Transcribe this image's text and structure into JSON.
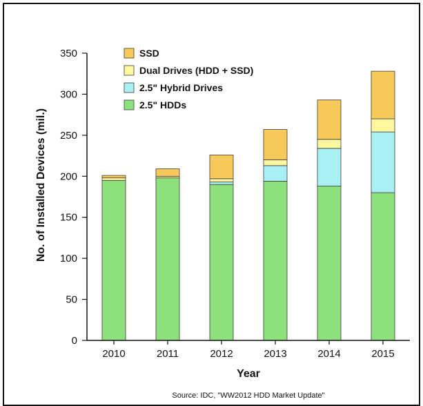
{
  "chart_data": {
    "type": "bar",
    "stacked": true,
    "categories": [
      "2010",
      "2011",
      "2012",
      "2013",
      "2014",
      "2015"
    ],
    "series": [
      {
        "name": "2.5\" HDDs",
        "color": "#8ee07c",
        "values": [
          195,
          198,
          190,
          194,
          188,
          180
        ]
      },
      {
        "name": "2.5\" Hybrid Drives",
        "color": "#a8f0f4",
        "values": [
          0,
          0,
          3,
          19,
          46,
          74
        ]
      },
      {
        "name": "Dual Drives (HDD + SSD)",
        "color": "#fff7a0",
        "values": [
          3,
          2,
          4,
          7,
          11,
          16
        ]
      },
      {
        "name": "SSD",
        "color": "#f7c85a",
        "values": [
          3,
          9,
          29,
          37,
          48,
          58
        ]
      }
    ],
    "xlabel": "Year",
    "ylabel": "No. of Installed Devices (mil.)",
    "ylim": [
      0,
      350
    ],
    "yticks": [
      0,
      50,
      100,
      150,
      200,
      250,
      300,
      350
    ],
    "grid": false,
    "legend_position": "top-left"
  },
  "source": "Source: IDC, \"WW2012 HDD Market Update\""
}
